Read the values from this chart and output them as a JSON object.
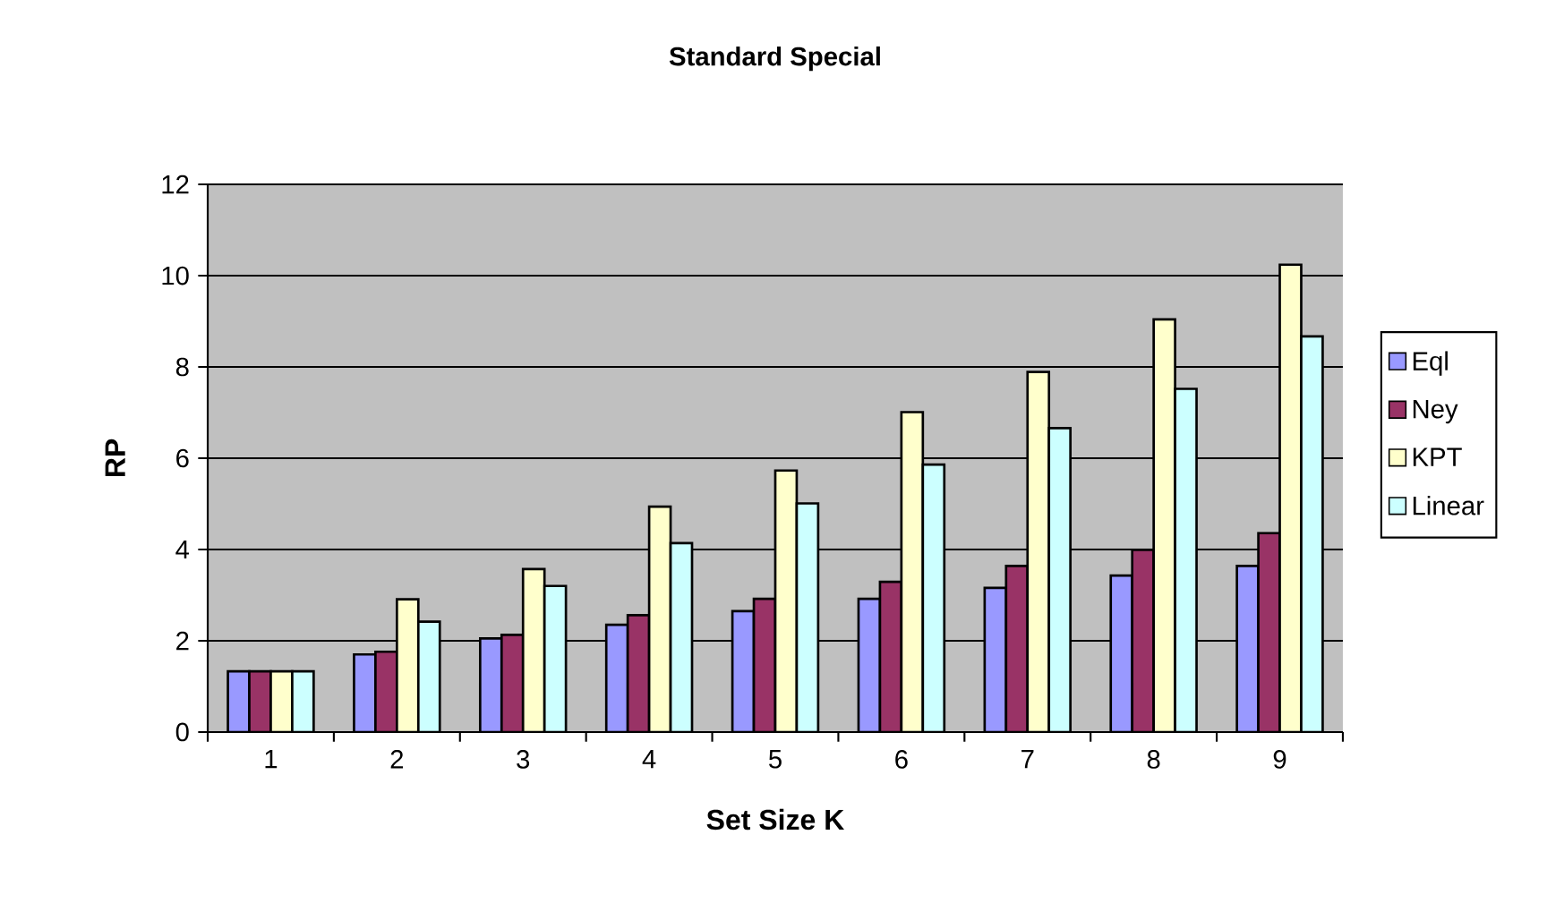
{
  "chart_data": {
    "type": "bar",
    "title": "Standard Special",
    "xlabel": "Set Size K",
    "ylabel": "RP",
    "categories": [
      "1",
      "2",
      "3",
      "4",
      "5",
      "6",
      "7",
      "8",
      "9"
    ],
    "series": [
      {
        "name": "Eql",
        "color": "#9999ff",
        "values": [
          1.33,
          1.7,
          2.05,
          2.35,
          2.65,
          2.92,
          3.16,
          3.43,
          3.64
        ]
      },
      {
        "name": "Ney",
        "color": "#993366",
        "values": [
          1.33,
          1.76,
          2.13,
          2.56,
          2.92,
          3.29,
          3.64,
          3.99,
          4.36
        ]
      },
      {
        "name": "KPT",
        "color": "#ffffcc",
        "values": [
          1.33,
          2.91,
          3.57,
          4.94,
          5.73,
          7.01,
          7.89,
          9.04,
          10.24
        ]
      },
      {
        "name": "Linear",
        "color": "#ccffff",
        "values": [
          1.33,
          2.42,
          3.2,
          4.14,
          5.01,
          5.86,
          6.66,
          7.52,
          8.67
        ]
      }
    ],
    "ylim": [
      0,
      12
    ],
    "yticks": [
      0,
      2,
      4,
      6,
      8,
      10,
      12
    ],
    "grid": "y",
    "legend": "right"
  }
}
